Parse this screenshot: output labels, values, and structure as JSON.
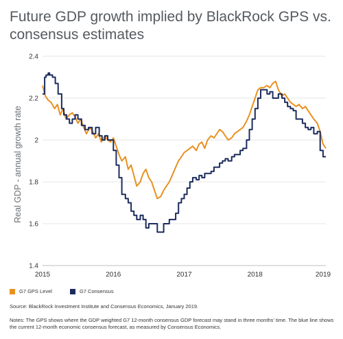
{
  "title": "Future GDP growth implied by BlackRock GPS vs. consensus estimates",
  "legend": [
    {
      "label": "G7 GPS Level",
      "color": "#e8901e"
    },
    {
      "label": "G7 Consensus",
      "color": "#1b2b5e"
    }
  ],
  "source": "Source: BlackRock Investment Institute and Consensus Economics, January 2019.",
  "notes": "Notes: The GPS shows where the GDP weighted G7 12-month consensus GDP forecast may stand in three months' time. The blue line shows the current 12-month economic consensus forecast, as measured by Consensus Economics.",
  "chart_data": {
    "type": "line",
    "title": "Future GDP growth implied by BlackRock GPS vs. consensus estimates",
    "ylabel": "Real GDP - annual growth rate",
    "xlabel": "",
    "ylim": [
      1.4,
      2.4
    ],
    "xlim": [
      2015.0,
      2019.0
    ],
    "yticks": [
      "1.4",
      "1.6",
      "1.8",
      "2",
      "2.2",
      "2.4"
    ],
    "ytick_values": [
      1.4,
      1.6,
      1.8,
      2.0,
      2.2,
      2.4
    ],
    "xticks": [
      "2015",
      "2016",
      "2017",
      "2018",
      "2019"
    ],
    "xtick_values": [
      2015,
      2016,
      2017,
      2018,
      2019
    ],
    "grid": "horizontal",
    "legend_position": "bottom-left",
    "series": [
      {
        "name": "G7 GPS Level",
        "color": "#e8901e",
        "x": [
          2015.0,
          2015.04,
          2015.08,
          2015.12,
          2015.17,
          2015.21,
          2015.25,
          2015.29,
          2015.33,
          2015.38,
          2015.42,
          2015.46,
          2015.5,
          2015.54,
          2015.58,
          2015.62,
          2015.67,
          2015.71,
          2015.75,
          2015.79,
          2015.83,
          2015.88,
          2015.92,
          2015.96,
          2016.0,
          2016.04,
          2016.08,
          2016.12,
          2016.17,
          2016.21,
          2016.25,
          2016.29,
          2016.33,
          2016.38,
          2016.42,
          2016.46,
          2016.5,
          2016.54,
          2016.58,
          2016.62,
          2016.67,
          2016.71,
          2016.75,
          2016.79,
          2016.83,
          2016.88,
          2016.92,
          2016.96,
          2017.0,
          2017.04,
          2017.08,
          2017.12,
          2017.17,
          2017.21,
          2017.25,
          2017.29,
          2017.33,
          2017.38,
          2017.42,
          2017.46,
          2017.5,
          2017.54,
          2017.58,
          2017.62,
          2017.67,
          2017.71,
          2017.75,
          2017.79,
          2017.83,
          2017.88,
          2017.92,
          2017.96,
          2018.0,
          2018.04,
          2018.08,
          2018.12,
          2018.17,
          2018.21,
          2018.25,
          2018.29,
          2018.33,
          2018.38,
          2018.42,
          2018.46,
          2018.5,
          2018.54,
          2018.58,
          2018.62,
          2018.67,
          2018.71,
          2018.75,
          2018.79,
          2018.83,
          2018.88,
          2018.92,
          2018.96,
          2019.0
        ],
        "values": [
          2.26,
          2.21,
          2.19,
          2.18,
          2.15,
          2.17,
          2.12,
          2.15,
          2.1,
          2.12,
          2.13,
          2.11,
          2.08,
          2.1,
          2.06,
          2.03,
          2.06,
          2.04,
          2.01,
          2.03,
          1.99,
          2.02,
          2.0,
          1.99,
          2.01,
          1.97,
          1.93,
          1.9,
          1.92,
          1.86,
          1.88,
          1.83,
          1.78,
          1.8,
          1.84,
          1.86,
          1.82,
          1.8,
          1.76,
          1.72,
          1.73,
          1.76,
          1.78,
          1.8,
          1.83,
          1.87,
          1.9,
          1.92,
          1.94,
          1.95,
          1.96,
          1.97,
          1.95,
          1.98,
          1.99,
          1.96,
          2.0,
          2.02,
          2.01,
          2.03,
          2.05,
          2.04,
          2.02,
          2.0,
          2.01,
          2.03,
          2.04,
          2.05,
          2.06,
          2.09,
          2.12,
          2.16,
          2.2,
          2.24,
          2.25,
          2.25,
          2.26,
          2.25,
          2.27,
          2.28,
          2.24,
          2.21,
          2.22,
          2.2,
          2.18,
          2.17,
          2.16,
          2.17,
          2.15,
          2.16,
          2.14,
          2.12,
          2.1,
          2.08,
          2.04,
          1.98,
          1.96
        ]
      },
      {
        "name": "G7 Consensus",
        "color": "#1b2b5e",
        "x": [
          2015.0,
          2015.03,
          2015.05,
          2015.08,
          2015.1,
          2015.14,
          2015.18,
          2015.22,
          2015.27,
          2015.3,
          2015.34,
          2015.38,
          2015.42,
          2015.46,
          2015.5,
          2015.55,
          2015.6,
          2015.65,
          2015.7,
          2015.75,
          2015.8,
          2015.84,
          2015.88,
          2015.92,
          2015.96,
          2016.0,
          2016.04,
          2016.08,
          2016.12,
          2016.17,
          2016.21,
          2016.25,
          2016.29,
          2016.33,
          2016.38,
          2016.42,
          2016.46,
          2016.5,
          2016.54,
          2016.58,
          2016.62,
          2016.67,
          2016.71,
          2016.75,
          2016.79,
          2016.83,
          2016.88,
          2016.92,
          2016.96,
          2017.0,
          2017.04,
          2017.08,
          2017.12,
          2017.17,
          2017.21,
          2017.25,
          2017.29,
          2017.33,
          2017.38,
          2017.42,
          2017.46,
          2017.5,
          2017.54,
          2017.58,
          2017.62,
          2017.67,
          2017.71,
          2017.75,
          2017.79,
          2017.83,
          2017.88,
          2017.92,
          2017.96,
          2018.0,
          2018.04,
          2018.08,
          2018.12,
          2018.17,
          2018.21,
          2018.25,
          2018.29,
          2018.33,
          2018.38,
          2018.42,
          2018.46,
          2018.5,
          2018.54,
          2018.58,
          2018.62,
          2018.67,
          2018.71,
          2018.75,
          2018.79,
          2018.83,
          2018.88,
          2018.92,
          2018.96,
          2019.0
        ],
        "values": [
          2.22,
          2.3,
          2.31,
          2.32,
          2.31,
          2.3,
          2.27,
          2.22,
          2.15,
          2.12,
          2.1,
          2.08,
          2.1,
          2.12,
          2.1,
          2.07,
          2.05,
          2.06,
          2.03,
          2.06,
          2.02,
          2.0,
          2.02,
          2.0,
          2.0,
          1.95,
          1.88,
          1.82,
          1.74,
          1.72,
          1.7,
          1.66,
          1.64,
          1.62,
          1.64,
          1.62,
          1.58,
          1.6,
          1.6,
          1.6,
          1.56,
          1.56,
          1.6,
          1.6,
          1.62,
          1.62,
          1.65,
          1.7,
          1.72,
          1.74,
          1.77,
          1.8,
          1.82,
          1.81,
          1.83,
          1.82,
          1.84,
          1.84,
          1.85,
          1.87,
          1.87,
          1.89,
          1.9,
          1.91,
          1.9,
          1.92,
          1.93,
          1.93,
          1.95,
          1.96,
          2.0,
          2.05,
          2.1,
          2.15,
          2.2,
          2.24,
          2.24,
          2.22,
          2.23,
          2.2,
          2.2,
          2.22,
          2.2,
          2.18,
          2.16,
          2.15,
          2.14,
          2.1,
          2.1,
          2.08,
          2.06,
          2.05,
          2.06,
          2.03,
          2.04,
          1.95,
          1.92,
          1.92
        ]
      }
    ]
  }
}
